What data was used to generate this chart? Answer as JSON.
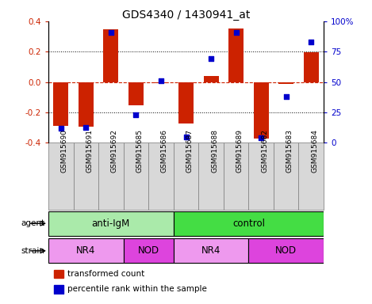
{
  "title": "GDS4340 / 1430941_at",
  "samples": [
    "GSM915690",
    "GSM915691",
    "GSM915692",
    "GSM915685",
    "GSM915686",
    "GSM915687",
    "GSM915688",
    "GSM915689",
    "GSM915682",
    "GSM915683",
    "GSM915684"
  ],
  "transformed_counts": [
    -0.29,
    -0.295,
    0.345,
    -0.155,
    -0.005,
    -0.27,
    0.04,
    0.35,
    -0.37,
    -0.01,
    0.195
  ],
  "percentile_ranks": [
    12,
    13,
    91,
    23,
    51,
    5,
    69,
    91,
    4,
    38,
    83
  ],
  "ylim_left": [
    -0.4,
    0.4
  ],
  "ylim_right": [
    0,
    100
  ],
  "yticks_left": [
    -0.4,
    -0.2,
    0.0,
    0.2,
    0.4
  ],
  "yticks_right": [
    0,
    25,
    50,
    75,
    100
  ],
  "ytick_labels_right": [
    "0",
    "25",
    "50",
    "75",
    "100%"
  ],
  "bar_color": "#cc2200",
  "dot_color": "#0000cc",
  "zero_line_color": "#cc2200",
  "agent_groups": [
    {
      "label": "anti-IgM",
      "start": 0,
      "end": 5,
      "color": "#aaeaaa"
    },
    {
      "label": "control",
      "start": 5,
      "end": 11,
      "color": "#44dd44"
    }
  ],
  "strain_groups": [
    {
      "label": "NR4",
      "start": 0,
      "end": 3,
      "color": "#ee99ee"
    },
    {
      "label": "NOD",
      "start": 3,
      "end": 5,
      "color": "#dd44dd"
    },
    {
      "label": "NR4",
      "start": 5,
      "end": 8,
      "color": "#ee99ee"
    },
    {
      "label": "NOD",
      "start": 8,
      "end": 11,
      "color": "#dd44dd"
    }
  ],
  "bar_width": 0.6,
  "xlabel_fontsize": 6.5,
  "title_fontsize": 10,
  "tick_fontsize": 7.5,
  "label_fontsize": 7.5,
  "legend_fontsize": 7.5,
  "group_label_fontsize": 8.5,
  "agent_label": "agent",
  "strain_label": "strain",
  "sample_box_color": "#d8d8d8",
  "sample_box_edge": "#888888"
}
